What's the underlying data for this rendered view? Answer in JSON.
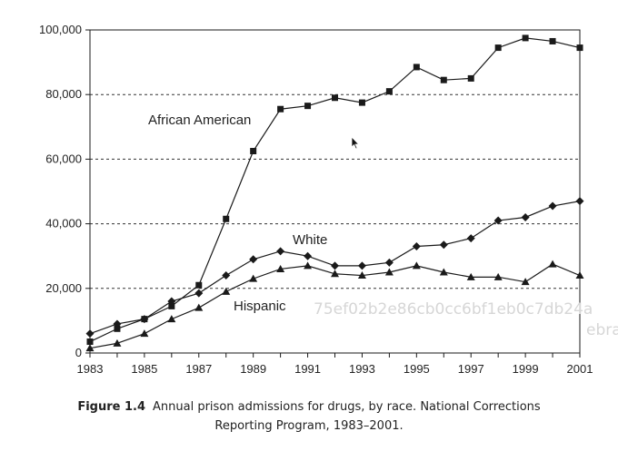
{
  "chart_data": {
    "type": "line",
    "x": [
      1983,
      1984,
      1985,
      1986,
      1987,
      1988,
      1989,
      1990,
      1991,
      1992,
      1993,
      1994,
      1995,
      1996,
      1997,
      1998,
      1999,
      2000,
      2001
    ],
    "x_tick_labels": [
      "1983",
      "1985",
      "1987",
      "1989",
      "1991",
      "1993",
      "1995",
      "1997",
      "1999",
      "2001"
    ],
    "y_tick_labels": [
      "0",
      "20,000",
      "40,000",
      "60,000",
      "80,000",
      "100,000"
    ],
    "ylim": [
      0,
      100000
    ],
    "xlim": [
      1983,
      2001
    ],
    "grid": "dashed horizontal",
    "series": [
      {
        "name": "African American",
        "marker": "square",
        "values": [
          3500,
          7500,
          10500,
          14500,
          21000,
          41500,
          62500,
          75500,
          76500,
          79000,
          77500,
          81000,
          88500,
          84500,
          85000,
          94500,
          97500,
          96500,
          94500
        ]
      },
      {
        "name": "White",
        "marker": "diamond",
        "values": [
          6000,
          9000,
          10500,
          16000,
          18500,
          24000,
          29000,
          31500,
          30000,
          27000,
          27000,
          28000,
          33000,
          33500,
          35500,
          41000,
          42000,
          45500,
          47000
        ]
      },
      {
        "name": "Hispanic",
        "marker": "triangle",
        "values": [
          1500,
          3000,
          6000,
          10500,
          14000,
          19000,
          23000,
          26000,
          27000,
          24500,
          24000,
          25000,
          27000,
          25000,
          23500,
          23500,
          22000,
          27500,
          24000
        ]
      }
    ],
    "watermark": [
      "75ef02b2e86cb0cc6bf1eb0c7db24a",
      "ebra"
    ]
  },
  "caption": {
    "figure_label": "Figure 1.4",
    "line1": "Annual prison admissions for drugs, by race. National Corrections",
    "line2": "Reporting Program, 1983–2001."
  },
  "colors": {
    "line": "#1a1a1a",
    "grid": "#333333",
    "watermark": "#d6d6d6"
  }
}
